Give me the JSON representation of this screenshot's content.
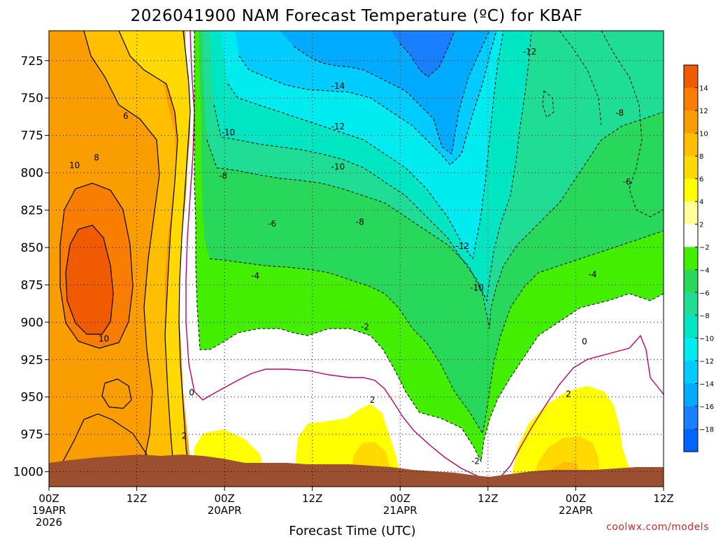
{
  "chart_data": {
    "type": "heatmap",
    "title": "2026041900 NAM Forecast Temperature (ºC) for KBAF",
    "xlabel": "Forecast Time (UTC)",
    "ylabel": "",
    "x_ticks": [
      {
        "hour": 0,
        "lines": [
          "00Z",
          "19APR",
          "2026"
        ]
      },
      {
        "hour": 12,
        "lines": [
          "12Z"
        ]
      },
      {
        "hour": 24,
        "lines": [
          "00Z",
          "20APR"
        ]
      },
      {
        "hour": 36,
        "lines": [
          "12Z"
        ]
      },
      {
        "hour": 48,
        "lines": [
          "00Z",
          "21APR"
        ]
      },
      {
        "hour": 60,
        "lines": [
          "12Z"
        ]
      },
      {
        "hour": 72,
        "lines": [
          "00Z",
          "22APR"
        ]
      },
      {
        "hour": 84,
        "lines": [
          "12Z"
        ]
      }
    ],
    "xlim": [
      0,
      84
    ],
    "y_ticks": [
      725,
      750,
      775,
      800,
      825,
      850,
      875,
      900,
      925,
      950,
      975,
      1000
    ],
    "ylim": [
      1010,
      705
    ],
    "y_axis": "pressure (hPa), decreasing upward",
    "grid": true,
    "colorbar": {
      "levels": [
        14,
        12,
        10,
        8,
        6,
        4,
        2,
        -2,
        -4,
        -6,
        -8,
        -10,
        -12,
        -14,
        -16,
        -18
      ],
      "colors": [
        "#f05a00",
        "#f87d00",
        "#fa9d00",
        "#ffbf00",
        "#ffd900",
        "#ffff00",
        "#ffff9a",
        "#ffffff",
        "#44ee00",
        "#27d85a",
        "#1fdd95",
        "#00e6c3",
        "#00ebf0",
        "#00ccff",
        "#00aaff",
        "#1a7fff",
        "#0066ff"
      ]
    },
    "contour_labels": [
      {
        "text": "6",
        "hour": 10.5,
        "p": 762
      },
      {
        "text": "8",
        "hour": 6.5,
        "p": 790
      },
      {
        "text": "10",
        "hour": 3.5,
        "p": 795
      },
      {
        "text": "10",
        "hour": 7.5,
        "p": 911
      },
      {
        "text": "0",
        "hour": 19.5,
        "p": 947
      },
      {
        "text": "2",
        "hour": 18.5,
        "p": 976
      },
      {
        "text": "-10",
        "hour": 24.5,
        "p": 773
      },
      {
        "text": "-8",
        "hour": 23.8,
        "p": 802
      },
      {
        "text": "-6",
        "hour": 30.5,
        "p": 834
      },
      {
        "text": "-4",
        "hour": 28.2,
        "p": 869
      },
      {
        "text": "-14",
        "hour": 39.5,
        "p": 742
      },
      {
        "text": "-12",
        "hour": 39.5,
        "p": 769
      },
      {
        "text": "-10",
        "hour": 39.5,
        "p": 796
      },
      {
        "text": "-8",
        "hour": 42.5,
        "p": 833
      },
      {
        "text": "-2",
        "hour": 43.2,
        "p": 903
      },
      {
        "text": "2",
        "hour": 44.2,
        "p": 952
      },
      {
        "text": "-12",
        "hour": 56.5,
        "p": 849
      },
      {
        "text": "-10",
        "hour": 58.5,
        "p": 877
      },
      {
        "text": "-2",
        "hour": 58.3,
        "p": 993
      },
      {
        "text": "-12",
        "hour": 65.7,
        "p": 719
      },
      {
        "text": "2",
        "hour": 71.0,
        "p": 948
      },
      {
        "text": "0",
        "hour": 73.2,
        "p": 913
      },
      {
        "text": "-4",
        "hour": 74.3,
        "p": 868
      },
      {
        "text": "-6",
        "hour": 79.0,
        "p": 806
      },
      {
        "text": "-8",
        "hour": 78.0,
        "p": 760
      }
    ]
  },
  "credit": "coolwx.com/models"
}
